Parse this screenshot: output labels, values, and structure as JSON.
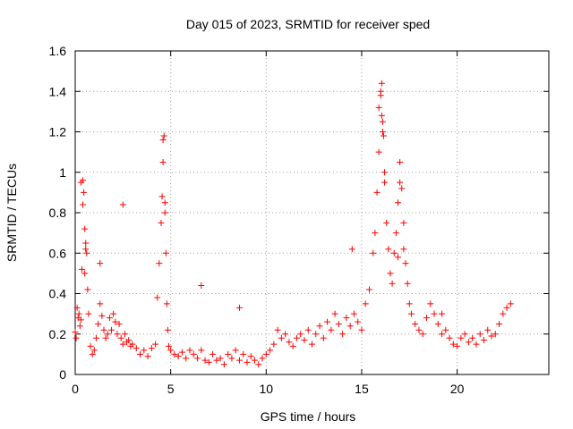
{
  "chart_data": {
    "type": "scatter",
    "title": "Day 015 of 2023, SRMTID for receiver sped",
    "xlabel": "GPS time / hours",
    "ylabel": "SRMTID / TECUs",
    "xlim": [
      0,
      24.8
    ],
    "ylim": [
      0,
      1.6
    ],
    "xticks": [
      0,
      5,
      10,
      15,
      20
    ],
    "xtick_labels": [
      "0",
      "5",
      "10",
      "15",
      "20"
    ],
    "yticks": [
      0,
      0.2,
      0.4,
      0.6,
      0.8,
      1.0,
      1.2,
      1.4,
      1.6
    ],
    "ytick_labels": [
      "0",
      "0.2",
      "0.4",
      "0.6",
      "0.8",
      "1",
      "1.2",
      "1.4",
      "1.6"
    ],
    "grid": true,
    "marker": "plus",
    "marker_color": "#ff0000",
    "series": [
      {
        "name": "SRMTID",
        "x": [
          0.0,
          0.05,
          0.1,
          0.15,
          0.2,
          0.25,
          0.3,
          0.35,
          0.4,
          0.45,
          0.5,
          0.55,
          0.6,
          0.65,
          0.7,
          0.8,
          0.9,
          1.0,
          1.1,
          1.2,
          1.3,
          1.4,
          1.5,
          1.6,
          1.7,
          1.8,
          1.9,
          2.0,
          2.1,
          2.2,
          2.3,
          2.4,
          2.5,
          2.6,
          2.7,
          2.8,
          2.9,
          3.0,
          3.2,
          3.4,
          3.6,
          3.8,
          4.0,
          4.2,
          4.3,
          4.4,
          4.5,
          4.55,
          4.6,
          4.65,
          4.7,
          4.75,
          4.8,
          4.85,
          4.9,
          5.0,
          5.2,
          5.4,
          5.6,
          5.8,
          6.0,
          6.2,
          6.4,
          6.6,
          6.8,
          7.0,
          7.2,
          7.4,
          7.6,
          7.8,
          8.0,
          8.2,
          8.4,
          8.6,
          8.8,
          9.0,
          9.2,
          9.4,
          9.6,
          9.8,
          10.0,
          10.2,
          10.4,
          10.6,
          10.8,
          11.0,
          11.2,
          11.4,
          11.6,
          11.8,
          12.0,
          12.2,
          12.4,
          12.6,
          12.8,
          13.0,
          13.2,
          13.4,
          13.6,
          13.8,
          14.0,
          14.2,
          14.4,
          14.6,
          14.8,
          15.0,
          15.2,
          15.4,
          15.6,
          15.7,
          15.8,
          15.9,
          16.0,
          16.05,
          16.1,
          16.15,
          16.2,
          16.3,
          16.4,
          16.5,
          16.6,
          16.7,
          16.8,
          16.9,
          17.0,
          17.1,
          17.2,
          17.3,
          17.4,
          17.5,
          17.6,
          17.8,
          18.0,
          18.2,
          18.4,
          18.6,
          18.8,
          19.0,
          19.2,
          19.4,
          19.6,
          19.8,
          20.0,
          20.2,
          20.4,
          20.6,
          20.8,
          21.0,
          21.2,
          21.4,
          21.6,
          21.8,
          22.0,
          22.2,
          22.4,
          22.6,
          22.8,
          0.3,
          0.4,
          0.5,
          0.55,
          1.3,
          2.5,
          4.6,
          4.7,
          6.6,
          8.6,
          14.5,
          15.9,
          16.0,
          16.05,
          16.1,
          16.2,
          16.9,
          17.0,
          17.2,
          19.2
        ],
        "y": [
          0.21,
          0.18,
          0.33,
          0.28,
          0.3,
          0.24,
          0.27,
          0.52,
          0.96,
          0.9,
          0.72,
          0.65,
          0.6,
          0.42,
          0.3,
          0.14,
          0.1,
          0.12,
          0.18,
          0.25,
          0.35,
          0.29,
          0.22,
          0.18,
          0.2,
          0.28,
          0.22,
          0.3,
          0.26,
          0.2,
          0.25,
          0.18,
          0.15,
          0.2,
          0.16,
          0.17,
          0.14,
          0.15,
          0.13,
          0.1,
          0.12,
          0.09,
          0.13,
          0.15,
          0.38,
          0.55,
          0.75,
          0.88,
          1.05,
          1.18,
          0.85,
          0.6,
          0.35,
          0.22,
          0.14,
          0.12,
          0.1,
          0.09,
          0.11,
          0.08,
          0.12,
          0.1,
          0.08,
          0.12,
          0.07,
          0.06,
          0.1,
          0.07,
          0.08,
          0.05,
          0.1,
          0.08,
          0.12,
          0.07,
          0.1,
          0.06,
          0.09,
          0.07,
          0.05,
          0.08,
          0.1,
          0.12,
          0.15,
          0.22,
          0.18,
          0.2,
          0.16,
          0.14,
          0.18,
          0.2,
          0.17,
          0.22,
          0.15,
          0.2,
          0.24,
          0.18,
          0.26,
          0.22,
          0.3,
          0.25,
          0.2,
          0.28,
          0.24,
          0.3,
          0.26,
          0.22,
          0.35,
          0.42,
          0.6,
          0.7,
          0.9,
          1.1,
          1.38,
          1.44,
          1.25,
          1.18,
          0.95,
          0.75,
          0.62,
          0.5,
          0.45,
          0.6,
          0.7,
          0.85,
          1.05,
          0.92,
          0.75,
          0.55,
          0.45,
          0.35,
          0.3,
          0.25,
          0.22,
          0.2,
          0.28,
          0.35,
          0.3,
          0.25,
          0.2,
          0.22,
          0.18,
          0.15,
          0.14,
          0.18,
          0.2,
          0.16,
          0.18,
          0.15,
          0.2,
          0.17,
          0.22,
          0.19,
          0.2,
          0.25,
          0.3,
          0.33,
          0.35,
          0.95,
          0.84,
          0.5,
          0.62,
          0.55,
          0.84,
          1.16,
          0.8,
          0.44,
          0.33,
          0.62,
          1.32,
          1.4,
          1.28,
          1.2,
          1.0,
          0.58,
          0.95,
          0.62,
          0.3
        ]
      }
    ]
  }
}
